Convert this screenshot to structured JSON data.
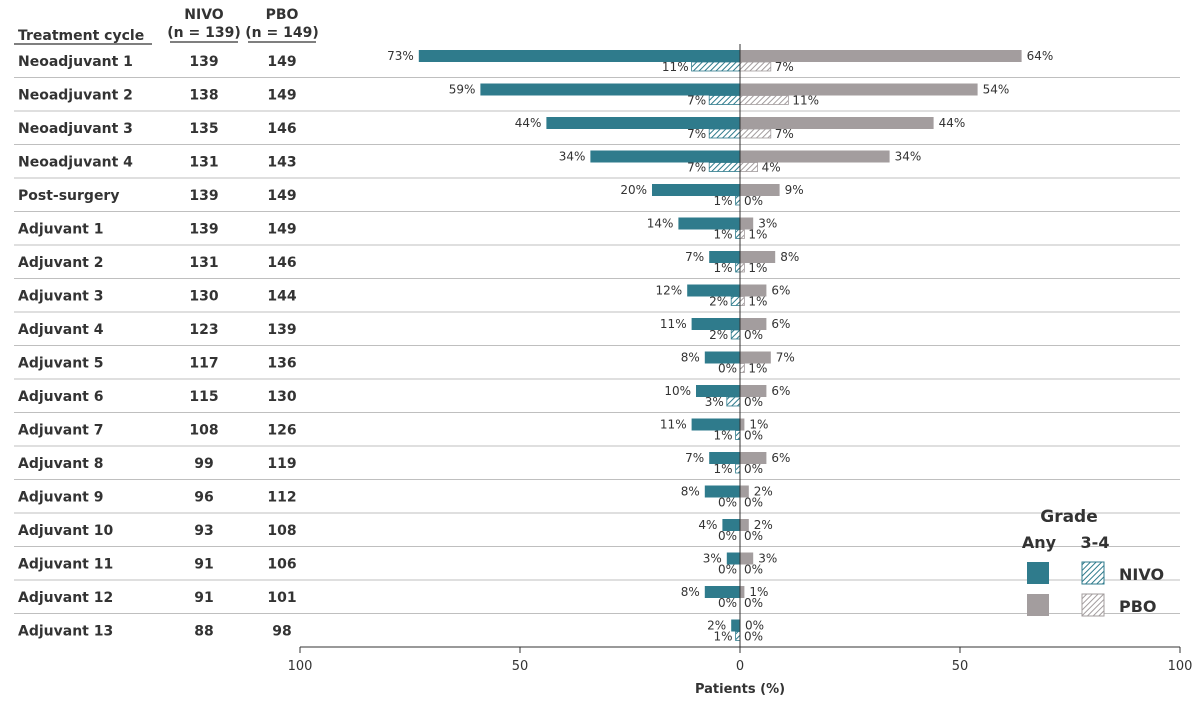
{
  "headers": {
    "cycle": "Treatment cycle",
    "nivo_line1": "NIVO",
    "nivo_line2": "(n = 139)",
    "pbo_line1": "PBO",
    "pbo_line2": "(n = 149)"
  },
  "colors": {
    "nivo": "#2f7b8c",
    "pbo": "#a39d9e",
    "hatch_nivo": "#2f7b8c",
    "hatch_pbo": "#a39d9e",
    "gridline": "#bfbfbf"
  },
  "legend": {
    "title": "Grade",
    "any": "Any",
    "grade34": "3-4",
    "nivo": "NIVO",
    "pbo": "PBO"
  },
  "chart_data": {
    "type": "bar",
    "orientation": "horizontal-butterfly",
    "categories": [
      "Neoadjuvant 1",
      "Neoadjuvant 2",
      "Neoadjuvant 3",
      "Neoadjuvant 4",
      "Post-surgery",
      "Adjuvant 1",
      "Adjuvant 2",
      "Adjuvant 3",
      "Adjuvant 4",
      "Adjuvant 5",
      "Adjuvant 6",
      "Adjuvant 7",
      "Adjuvant 8",
      "Adjuvant 9",
      "Adjuvant 10",
      "Adjuvant 11",
      "Adjuvant 12",
      "Adjuvant 13"
    ],
    "n_nivo": [
      139,
      138,
      135,
      131,
      139,
      139,
      131,
      130,
      123,
      117,
      115,
      108,
      99,
      96,
      93,
      91,
      91,
      88
    ],
    "n_pbo": [
      149,
      149,
      146,
      143,
      149,
      149,
      146,
      144,
      139,
      136,
      130,
      126,
      119,
      112,
      108,
      106,
      101,
      98
    ],
    "series": [
      {
        "name": "NIVO",
        "grade": "Any",
        "side": "left",
        "values": [
          73,
          59,
          44,
          34,
          20,
          14,
          7,
          12,
          11,
          8,
          10,
          11,
          7,
          8,
          4,
          3,
          8,
          2
        ]
      },
      {
        "name": "NIVO",
        "grade": "3-4",
        "side": "left",
        "values": [
          11,
          7,
          7,
          7,
          1,
          1,
          1,
          2,
          2,
          0,
          3,
          1,
          1,
          0,
          0,
          0,
          0,
          1
        ]
      },
      {
        "name": "PBO",
        "grade": "Any",
        "side": "right",
        "values": [
          64,
          54,
          44,
          34,
          9,
          3,
          8,
          6,
          6,
          7,
          6,
          1,
          6,
          2,
          2,
          3,
          1,
          0
        ]
      },
      {
        "name": "PBO",
        "grade": "3-4",
        "side": "right",
        "values": [
          7,
          11,
          7,
          4,
          0,
          1,
          1,
          1,
          0,
          1,
          0,
          0,
          0,
          0,
          0,
          0,
          0,
          0
        ]
      }
    ],
    "xlabel": "Patients (%)",
    "xlim": [
      -100,
      100
    ],
    "xticks": [
      100,
      50,
      0,
      50,
      100
    ],
    "legend_position": "bottom-right"
  }
}
